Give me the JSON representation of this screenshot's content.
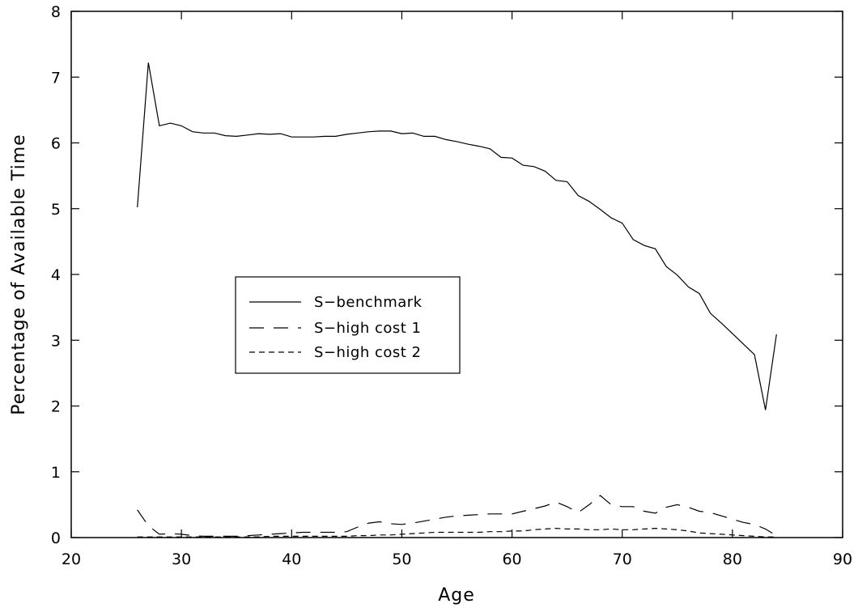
{
  "chart_data": {
    "type": "line",
    "xlabel": "Age",
    "ylabel": "Percentage of Available Time",
    "xlim": [
      20,
      90
    ],
    "ylim": [
      0,
      8
    ],
    "xticks": [
      20,
      30,
      40,
      50,
      60,
      70,
      80,
      90
    ],
    "yticks": [
      0,
      1,
      2,
      3,
      4,
      5,
      6,
      7,
      8
    ],
    "grid": false,
    "legend_position": "center-left",
    "series": [
      {
        "name": "S−benchmark",
        "style": "solid",
        "color": "#000000",
        "x": [
          26,
          27,
          28,
          29,
          30,
          31,
          32,
          33,
          34,
          35,
          36,
          37,
          38,
          39,
          40,
          41,
          42,
          43,
          44,
          45,
          46,
          47,
          48,
          49,
          50,
          51,
          52,
          53,
          54,
          55,
          56,
          57,
          58,
          59,
          60,
          61,
          62,
          63,
          64,
          65,
          66,
          67,
          68,
          69,
          70,
          71,
          72,
          73,
          74,
          75,
          76,
          77,
          78,
          79,
          80,
          81,
          82,
          83,
          84
        ],
        "y": [
          5.02,
          7.22,
          6.26,
          6.3,
          6.26,
          6.17,
          6.15,
          6.15,
          6.11,
          6.1,
          6.12,
          6.14,
          6.13,
          6.14,
          6.09,
          6.09,
          6.09,
          6.1,
          6.1,
          6.13,
          6.15,
          6.17,
          6.18,
          6.18,
          6.14,
          6.15,
          6.1,
          6.1,
          6.05,
          6.02,
          5.98,
          5.95,
          5.91,
          5.78,
          5.77,
          5.66,
          5.64,
          5.57,
          5.43,
          5.41,
          5.2,
          5.11,
          4.99,
          4.86,
          4.78,
          4.53,
          4.44,
          4.39,
          4.12,
          3.99,
          3.81,
          3.71,
          3.41,
          3.26,
          3.1,
          2.94,
          2.78,
          1.94,
          3.09
        ]
      },
      {
        "name": "S−high cost 1",
        "style": "long-dash",
        "color": "#000000",
        "x": [
          26,
          27,
          28,
          29,
          30,
          31,
          32,
          33,
          34,
          35,
          36,
          37,
          38,
          39,
          40,
          41,
          42,
          43,
          44,
          45,
          46,
          47,
          48,
          49,
          50,
          51,
          52,
          53,
          54,
          55,
          56,
          57,
          58,
          59,
          60,
          61,
          62,
          63,
          64,
          65,
          66,
          67,
          68,
          69,
          70,
          71,
          72,
          73,
          74,
          75,
          76,
          77,
          78,
          79,
          80,
          81,
          82,
          83,
          84
        ],
        "y": [
          0.42,
          0.18,
          0.05,
          0.06,
          0.05,
          0.03,
          0.02,
          0.02,
          0.02,
          0.02,
          0.03,
          0.04,
          0.05,
          0.06,
          0.07,
          0.08,
          0.08,
          0.08,
          0.08,
          0.09,
          0.16,
          0.22,
          0.24,
          0.21,
          0.2,
          0.22,
          0.25,
          0.28,
          0.31,
          0.33,
          0.34,
          0.35,
          0.36,
          0.36,
          0.36,
          0.4,
          0.44,
          0.48,
          0.54,
          0.47,
          0.38,
          0.5,
          0.64,
          0.5,
          0.47,
          0.47,
          0.4,
          0.37,
          0.46,
          0.5,
          0.46,
          0.4,
          0.38,
          0.33,
          0.28,
          0.23,
          0.2,
          0.13,
          0.03
        ]
      },
      {
        "name": "S−high cost 2",
        "style": "short-dash",
        "color": "#000000",
        "x": [
          26,
          27,
          28,
          29,
          30,
          31,
          32,
          33,
          34,
          35,
          36,
          37,
          38,
          39,
          40,
          41,
          42,
          43,
          44,
          45,
          46,
          47,
          48,
          49,
          50,
          51,
          52,
          53,
          54,
          55,
          56,
          57,
          58,
          59,
          60,
          61,
          62,
          63,
          64,
          65,
          66,
          67,
          68,
          69,
          70,
          71,
          72,
          73,
          74,
          75,
          76,
          77,
          78,
          79,
          80,
          81,
          82,
          83,
          84
        ],
        "y": [
          0.01,
          0.01,
          0.01,
          0.01,
          0.01,
          0.01,
          0.01,
          0.01,
          0.01,
          0.01,
          0.01,
          0.01,
          0.02,
          0.02,
          0.02,
          0.02,
          0.02,
          0.02,
          0.02,
          0.02,
          0.03,
          0.03,
          0.04,
          0.04,
          0.05,
          0.06,
          0.07,
          0.08,
          0.08,
          0.08,
          0.08,
          0.08,
          0.09,
          0.09,
          0.1,
          0.1,
          0.12,
          0.13,
          0.14,
          0.13,
          0.13,
          0.12,
          0.12,
          0.13,
          0.12,
          0.12,
          0.13,
          0.14,
          0.13,
          0.12,
          0.1,
          0.07,
          0.06,
          0.05,
          0.04,
          0.03,
          0.02,
          0.01,
          0.01
        ]
      }
    ]
  }
}
